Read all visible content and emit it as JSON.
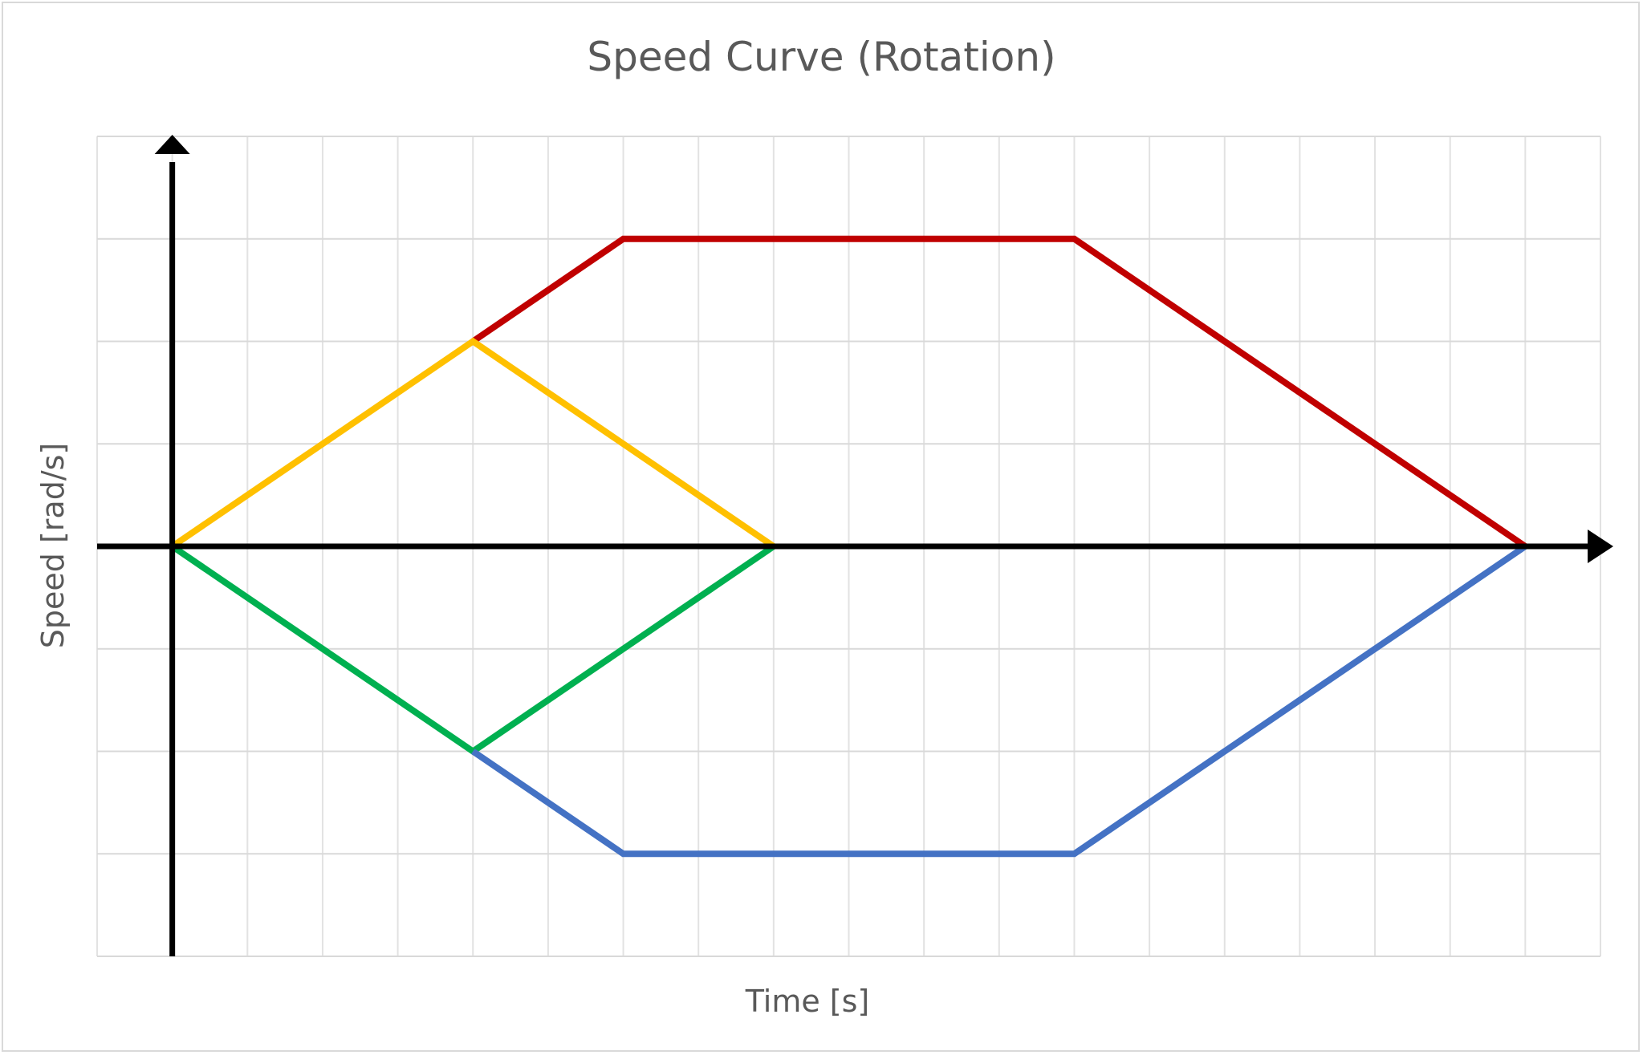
{
  "chart_data": {
    "type": "line",
    "title": "Speed Curve (Rotation)",
    "xlabel": "Time [s]",
    "ylabel": "Speed [rad/s]",
    "xlim": [
      -1,
      19
    ],
    "ylim": [
      -4,
      4
    ],
    "grid": true,
    "legend": "none",
    "tick_labels_visible": false,
    "axis_arrows": true,
    "series": [
      {
        "color": "#c00000",
        "x": [
          4,
          6,
          12,
          18
        ],
        "y": [
          2,
          3,
          3,
          0
        ]
      },
      {
        "color": "#ffc000",
        "x": [
          0,
          4,
          8
        ],
        "y": [
          0,
          2,
          0
        ]
      },
      {
        "color": "#00b050",
        "x": [
          0,
          4,
          8
        ],
        "y": [
          0,
          -2,
          0
        ]
      },
      {
        "color": "#4472c4",
        "x": [
          4,
          6,
          12,
          18
        ],
        "y": [
          -2,
          -3,
          -3,
          0
        ]
      }
    ]
  }
}
